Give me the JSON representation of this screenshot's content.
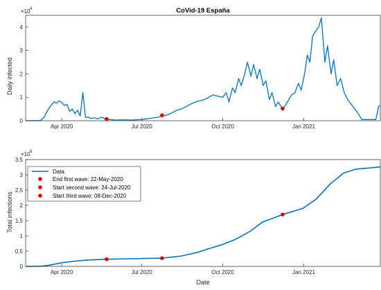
{
  "chart_data": [
    {
      "type": "line",
      "title": "CoVid-19 España",
      "xlabel": "",
      "ylabel": "Daily infected",
      "exponent_label": "×10",
      "exponent_power": "4",
      "x_ticks": [
        "Apr 2020",
        "Jul 2020",
        "Oct 2020",
        "Jan 2021"
      ],
      "y_ticks": [
        "0",
        "1",
        "2",
        "3",
        "4"
      ],
      "x_range": [
        "2020-02-20",
        "2021-03-29"
      ],
      "ylim": [
        0,
        45000
      ],
      "color": "#0072BD",
      "series": [
        {
          "x": [
            "2020-02-20",
            "2020-03-08",
            "2020-03-12",
            "2020-03-16",
            "2020-03-20",
            "2020-03-23",
            "2020-03-26",
            "2020-03-29",
            "2020-04-01",
            "2020-04-04",
            "2020-04-07",
            "2020-04-10",
            "2020-04-13",
            "2020-04-16",
            "2020-04-19",
            "2020-04-22",
            "2020-04-25",
            "2020-04-28",
            "2020-05-01",
            "2020-05-04",
            "2020-05-08",
            "2020-05-12",
            "2020-05-16",
            "2020-05-20",
            "2020-05-22",
            "2020-05-26",
            "2020-06-01",
            "2020-06-10",
            "2020-06-20",
            "2020-07-01",
            "2020-07-10",
            "2020-07-20",
            "2020-07-24",
            "2020-07-30",
            "2020-08-05",
            "2020-08-10",
            "2020-08-15",
            "2020-08-20",
            "2020-08-25",
            "2020-08-31",
            "2020-09-05",
            "2020-09-10",
            "2020-09-15",
            "2020-09-20",
            "2020-09-25",
            "2020-10-01",
            "2020-10-05",
            "2020-10-08",
            "2020-10-12",
            "2020-10-15",
            "2020-10-19",
            "2020-10-22",
            "2020-10-26",
            "2020-10-29",
            "2020-11-02",
            "2020-11-05",
            "2020-11-09",
            "2020-11-12",
            "2020-11-16",
            "2020-11-19",
            "2020-11-23",
            "2020-11-26",
            "2020-11-30",
            "2020-12-03",
            "2020-12-08",
            "2020-12-11",
            "2020-12-15",
            "2020-12-18",
            "2020-12-22",
            "2020-12-26",
            "2020-12-29",
            "2021-01-02",
            "2021-01-05",
            "2021-01-08",
            "2021-01-11",
            "2021-01-14",
            "2021-01-18",
            "2021-01-21",
            "2021-01-25",
            "2021-01-28",
            "2021-02-01",
            "2021-02-04",
            "2021-02-08",
            "2021-02-12",
            "2021-02-16",
            "2021-02-20",
            "2021-02-24",
            "2021-02-28",
            "2021-03-04",
            "2021-03-08",
            "2021-03-12",
            "2021-03-15",
            "2021-03-20",
            "2021-03-24",
            "2021-03-27",
            "2021-03-29"
          ],
          "y": [
            0,
            100,
            1500,
            4500,
            6500,
            8000,
            7500,
            8500,
            7800,
            6500,
            7000,
            4000,
            5000,
            3000,
            4500,
            2000,
            12000,
            1500,
            1500,
            1000,
            1200,
            800,
            1500,
            900,
            600,
            500,
            300,
            400,
            300,
            500,
            1000,
            1500,
            2000,
            2500,
            3500,
            4500,
            5000,
            6000,
            7000,
            8000,
            8500,
            9000,
            10000,
            11000,
            10500,
            10000,
            12000,
            8000,
            14000,
            12000,
            18000,
            15000,
            20000,
            25000,
            19000,
            24000,
            18000,
            22000,
            15000,
            17000,
            9000,
            12000,
            6000,
            8000,
            5000,
            6500,
            9000,
            11000,
            12000,
            16000,
            13000,
            20000,
            28000,
            25000,
            36000,
            38000,
            40000,
            44000,
            25000,
            32000,
            20000,
            26000,
            15000,
            18000,
            12000,
            9000,
            7000,
            5000,
            3000,
            500,
            500,
            500,
            500,
            500,
            6000,
            6500
          ]
        }
      ],
      "markers": [
        {
          "x": "2020-05-22",
          "y": 700
        },
        {
          "x": "2020-07-24",
          "y": 2300
        },
        {
          "x": "2020-12-08",
          "y": 5200
        }
      ]
    },
    {
      "type": "line",
      "title": "",
      "xlabel": "Date",
      "ylabel": "Total infections",
      "exponent_label": "×10",
      "exponent_power": "6",
      "x_ticks": [
        "Apr 2020",
        "Jul 2020",
        "Oct 2020",
        "Jan 2021"
      ],
      "y_ticks": [
        "0",
        "0.5",
        "1",
        "1.5",
        "2",
        "2.5",
        "3",
        "3.5"
      ],
      "x_range": [
        "2020-02-20",
        "2021-03-29"
      ],
      "ylim": [
        0,
        3.5
      ],
      "color": "#0072BD",
      "series": [
        {
          "name": "Data",
          "x": [
            "2020-02-20",
            "2020-03-10",
            "2020-03-20",
            "2020-04-01",
            "2020-04-15",
            "2020-05-01",
            "2020-05-22",
            "2020-06-15",
            "2020-07-24",
            "2020-08-15",
            "2020-09-01",
            "2020-09-15",
            "2020-10-01",
            "2020-10-15",
            "2020-11-01",
            "2020-11-15",
            "2020-12-08",
            "2020-12-31",
            "2021-01-15",
            "2021-01-31",
            "2021-02-15",
            "2021-02-28",
            "2021-03-15",
            "2021-03-29"
          ],
          "y": [
            0,
            0.01,
            0.05,
            0.12,
            0.17,
            0.21,
            0.235,
            0.25,
            0.27,
            0.34,
            0.45,
            0.58,
            0.72,
            0.88,
            1.15,
            1.45,
            1.7,
            1.9,
            2.2,
            2.7,
            3.05,
            3.18,
            3.22,
            3.26
          ]
        }
      ],
      "markers": [
        {
          "x": "2020-05-22",
          "y": 0.235
        },
        {
          "x": "2020-07-24",
          "y": 0.27
        },
        {
          "x": "2020-12-08",
          "y": 1.7
        }
      ],
      "legend": {
        "placement": "top-left",
        "entries": [
          "Data",
          "End first wave: 22-May-2020",
          "Start second wave: 24-Jul-2020",
          "Start third wave: 08-Dec-2020"
        ]
      }
    }
  ],
  "colors": {
    "line": "#0072BD",
    "marker": "#E00000",
    "axis": "#262626"
  }
}
